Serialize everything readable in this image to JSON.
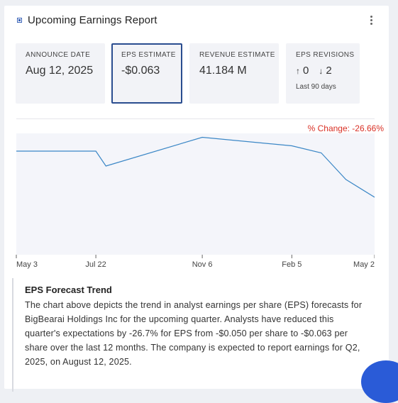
{
  "card": {
    "title": "Upcoming Earnings Report",
    "title_icon": "chart-square-icon",
    "menu_icon": "kebab-menu-icon"
  },
  "tiles": {
    "announce": {
      "label": "ANNOUNCE DATE",
      "value": "Aug 12, 2025"
    },
    "eps": {
      "label": "EPS ESTIMATE",
      "value": "-$0.063"
    },
    "revenue": {
      "label": "REVENUE ESTIMATE",
      "value": "41.184 M"
    },
    "revisions": {
      "label": "EPS REVISIONS",
      "up": "0",
      "down": "2",
      "up_icon": "arrow-up-icon",
      "down_icon": "arrow-down-icon",
      "sub": "Last 90 days"
    }
  },
  "chart": {
    "change_label": "% Change: -26.66%",
    "accent": "#3b87c6",
    "fill": "#f4f5fa"
  },
  "chart_data": {
    "type": "line",
    "x_ticks": [
      "May 3",
      "Jul 22",
      "Nov 6",
      "Feb 5",
      "May 2"
    ],
    "series": [
      {
        "values": [
          -0.05,
          -0.05,
          -0.0542,
          -0.0461,
          -0.0485,
          -0.0505,
          -0.058,
          -0.063
        ]
      }
    ],
    "ylim": [
      -0.075,
      -0.045
    ],
    "grid": false
  },
  "forecast": {
    "title": "EPS Forecast Trend",
    "body": "The chart above depicts the trend in analyst earnings per share (EPS) forecasts for BigBearai Holdings Inc for the upcoming quarter. Analysts have reduced this quarter's expectations by -26.7% for EPS from -$0.050 per share to -$0.063 per share over the last 12 months. The company is expected to report earnings for Q2, 2025, on August 12, 2025."
  }
}
